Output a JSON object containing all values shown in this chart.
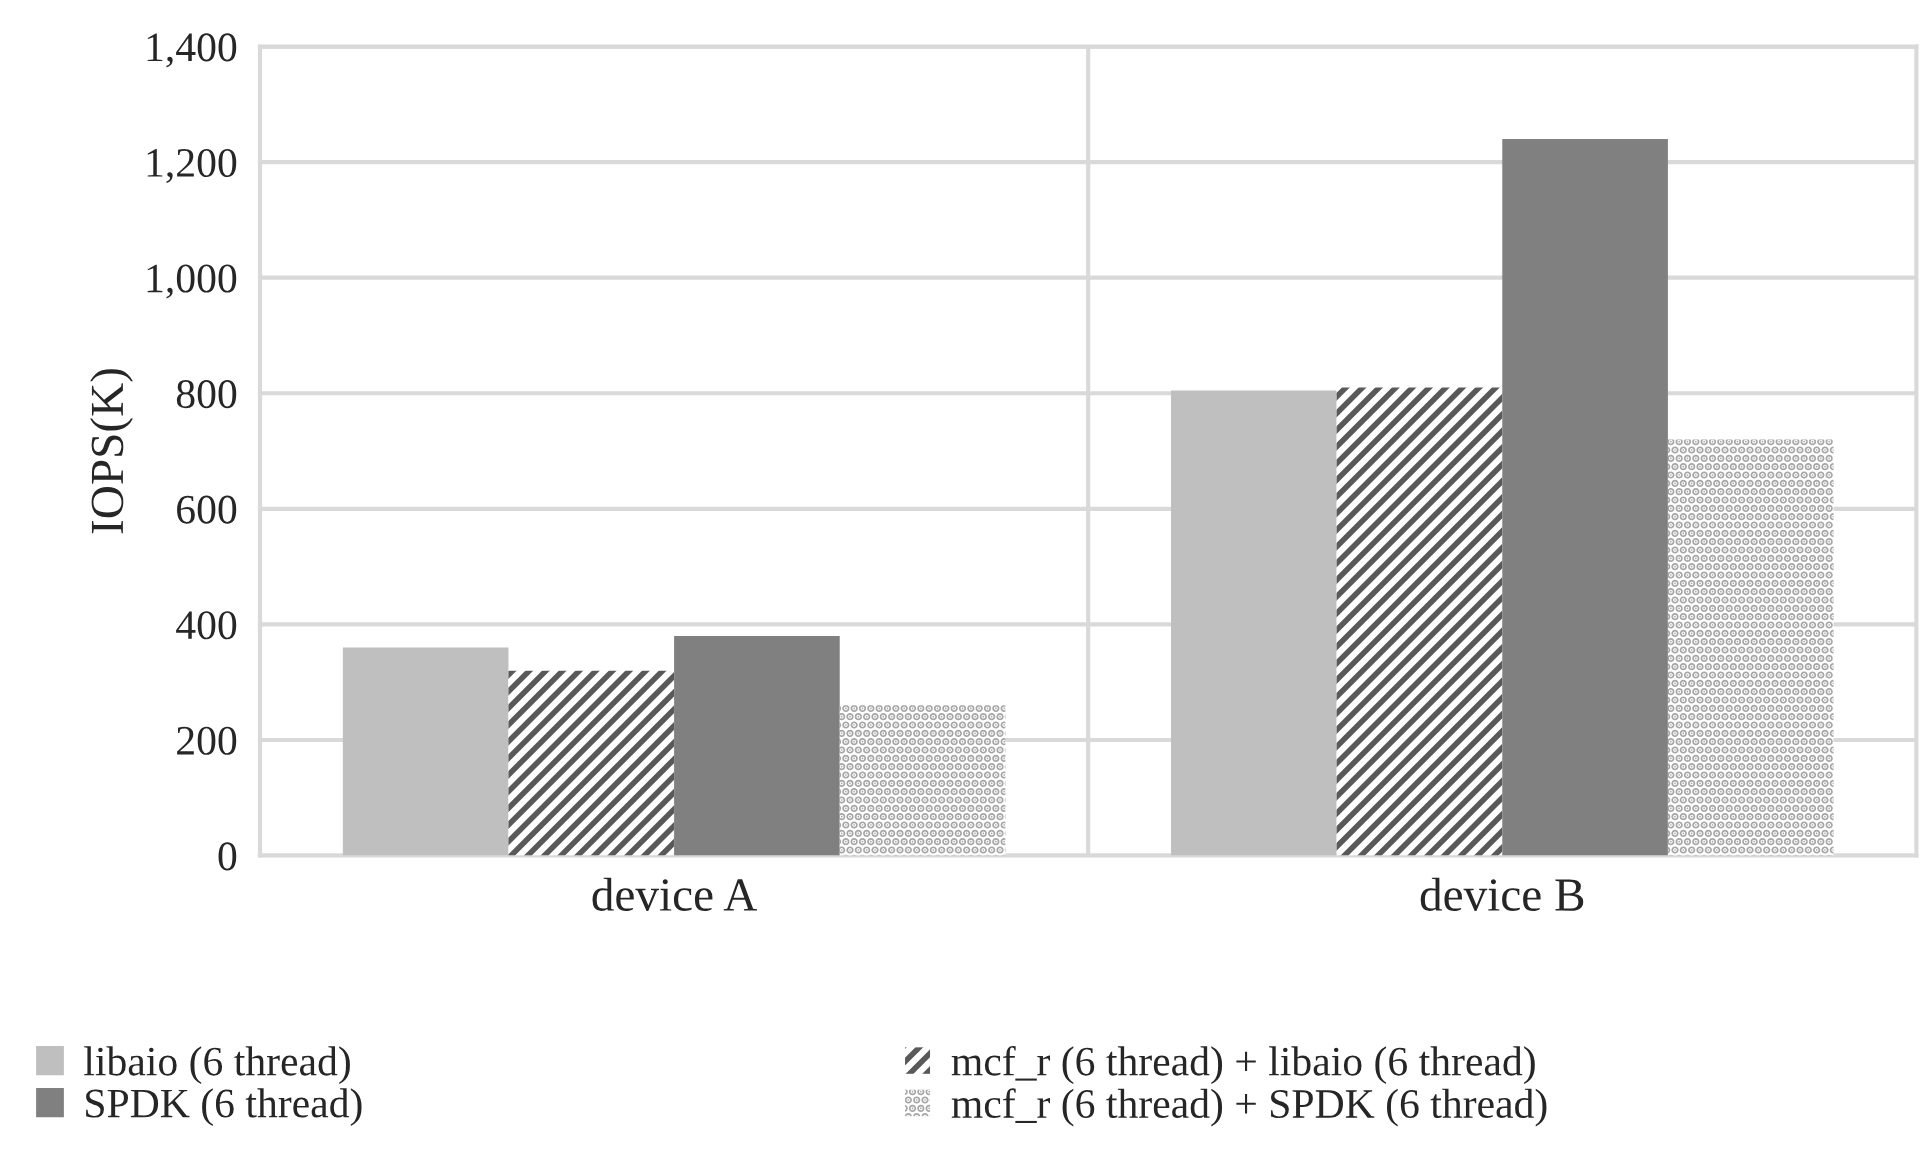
{
  "chart_data": {
    "type": "bar",
    "ylabel": "IOPS(K)",
    "categories": [
      "device A",
      "device B"
    ],
    "series": [
      {
        "name": "libaio (6 thread)",
        "color": "#bfbfbf",
        "values": [
          360,
          805
        ]
      },
      {
        "name": "mcf_r (6 thread) + libaio (6 thread)",
        "color": "#595959",
        "values": [
          320,
          810
        ]
      },
      {
        "name": "SPDK (6 thread)",
        "color": "#808080",
        "values": [
          380,
          1240
        ]
      },
      {
        "name": "mcf_r (6 thread) + SPDK (6 thread)",
        "color": "#a6a6a6",
        "values": [
          260,
          720
        ]
      }
    ],
    "ylim": [
      0,
      1400
    ],
    "yticks": [
      0,
      {
        "value": 200,
        "label": "200"
      },
      {
        "value": 400,
        "label": "400"
      },
      {
        "value": 600,
        "label": "600"
      },
      {
        "value": 800,
        "label": "800"
      },
      {
        "value": 1000,
        "label": "1,000"
      },
      {
        "value": 1200,
        "label": "1,200"
      },
      {
        "value": 1400,
        "label": "1,400"
      }
    ],
    "grid": true,
    "legend": "bottom"
  }
}
